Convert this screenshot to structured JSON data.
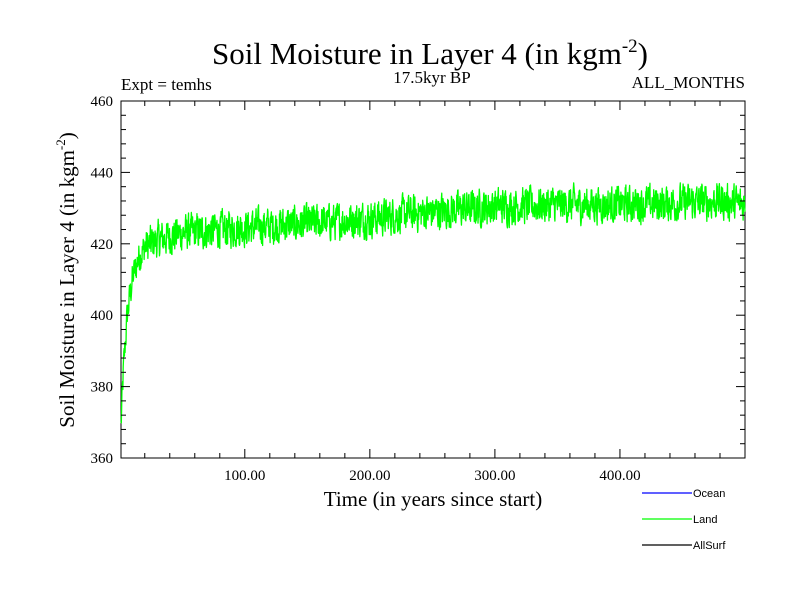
{
  "chart_data": {
    "type": "line",
    "title": "Soil Moisture in Layer 4 (in kgm",
    "title_sup": "-2",
    "title_close": ")",
    "subtitle_left": "Expt = temhs",
    "subtitle_center": "17.5kyr BP",
    "subtitle_right": "ALL_MONTHS",
    "xlabel": "Time (in years since start)",
    "ylabel": "Soil Moisture in Layer 4 (in kgm",
    "ylabel_sup": "-2",
    "ylabel_close": ")",
    "xlim": [
      1,
      500
    ],
    "ylim": [
      360,
      460
    ],
    "xticks_major": [
      100,
      200,
      300,
      400
    ],
    "xtick_labels": [
      "100.00",
      "200.00",
      "300.00",
      "400.00"
    ],
    "yticks_major": [
      360,
      380,
      400,
      420,
      440,
      460
    ],
    "ytick_labels": [
      "360",
      "380",
      "400",
      "420",
      "440",
      "460"
    ],
    "legend": [
      {
        "name": "Ocean",
        "color": "#0000ff"
      },
      {
        "name": "Land",
        "color": "#00ff00"
      },
      {
        "name": "AllSurf",
        "color": "#000000"
      }
    ],
    "series": [
      {
        "name": "Land",
        "color": "#00ff00",
        "trend_knots": {
          "x": [
            1,
            3,
            6,
            10,
            15,
            20,
            30,
            50,
            80,
            120,
            160,
            200,
            220,
            250,
            300,
            350,
            400,
            450,
            480,
            500
          ],
          "y": [
            369,
            385,
            400,
            410,
            416,
            419,
            421,
            423,
            424,
            425,
            426,
            427,
            428,
            429,
            430.5,
            431,
            431,
            431.5,
            432,
            431
          ]
        },
        "noise_amplitude": 4.5,
        "extremes": {
          "min": 369,
          "max": 440.5
        }
      }
    ]
  }
}
